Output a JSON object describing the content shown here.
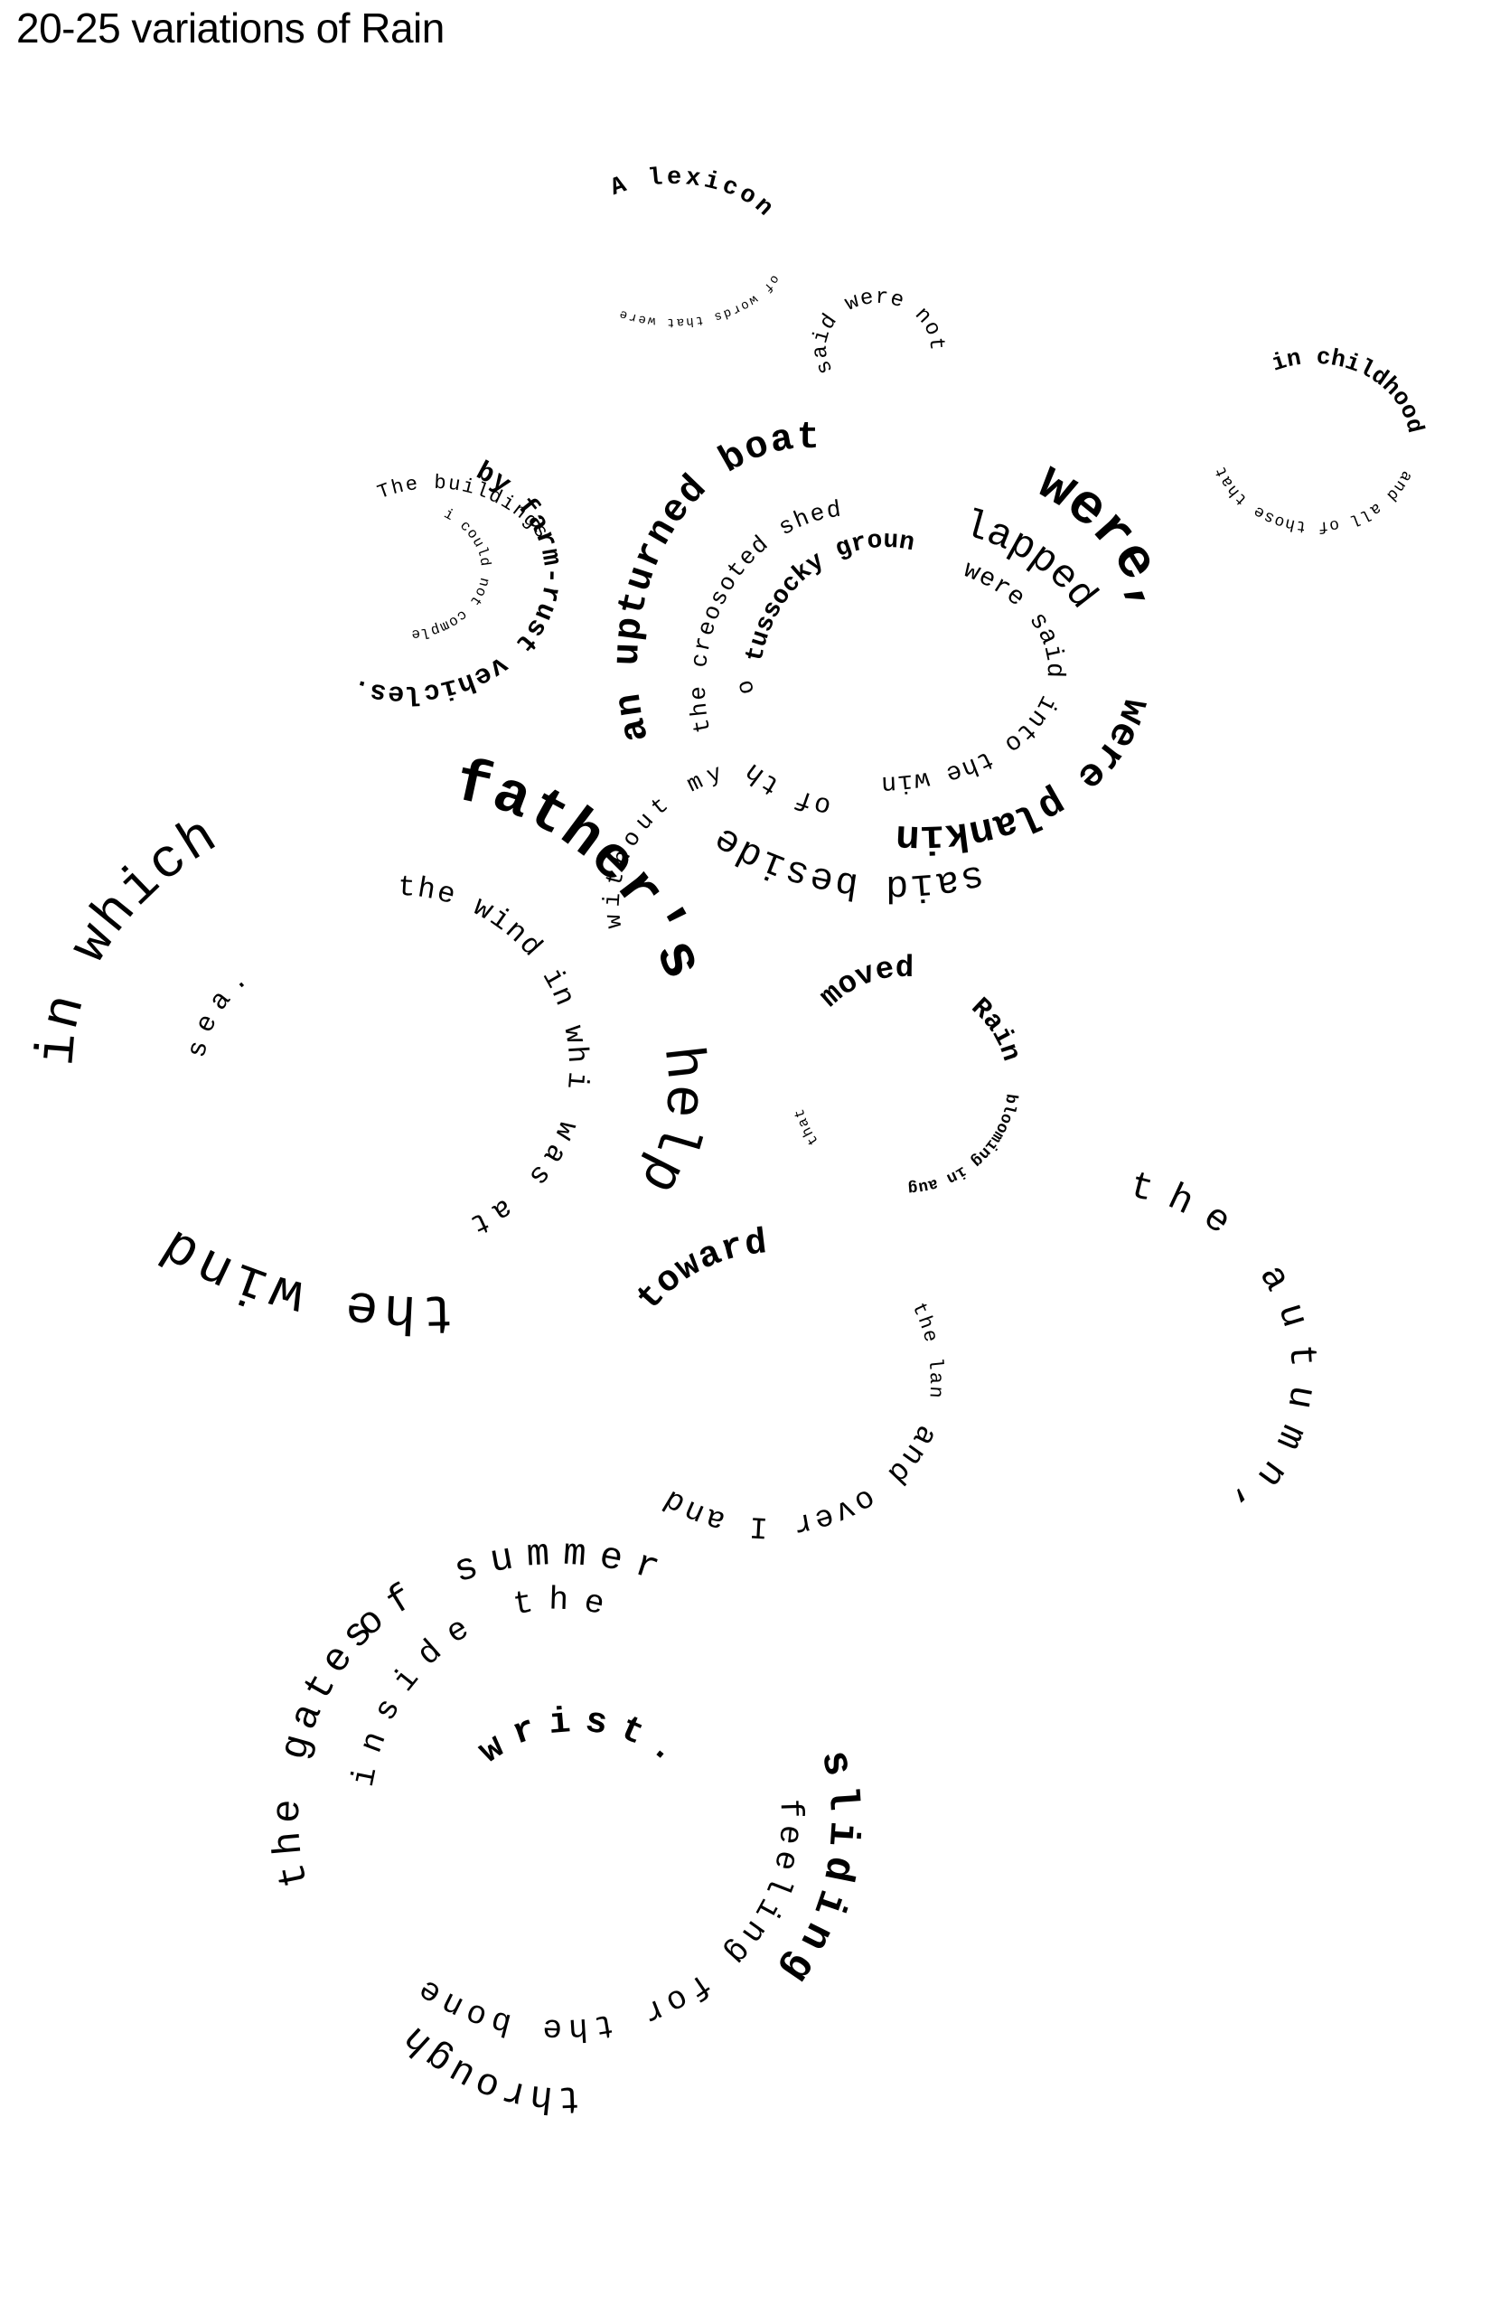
{
  "title": "20-25 variations of Rain",
  "colors": {
    "ink": "#000000",
    "background": "#ffffff"
  },
  "phrases": [
    {
      "id": "a-lexicon",
      "text": "A lexicon"
    },
    {
      "id": "of-words-that-were",
      "text": "of words that were"
    },
    {
      "id": "said-were-not",
      "text": "said were not"
    },
    {
      "id": "in-childhood",
      "text": "in childhood,"
    },
    {
      "id": "and-all-of-those-that",
      "text": "and all of those that"
    },
    {
      "id": "the-buildings",
      "text": "The buildings"
    },
    {
      "id": "by-farm-rust-vehicles",
      "text": "by farm-rust vehicles."
    },
    {
      "id": "i-could-not-complete",
      "text": "i could not complete"
    },
    {
      "id": "an-upturned-boat",
      "text": "an upturned boat,"
    },
    {
      "id": "were",
      "text": "were,"
    },
    {
      "id": "lapped",
      "text": "lapped"
    },
    {
      "id": "were-planking",
      "text": "were planking"
    },
    {
      "id": "said-beside",
      "text": "said beside"
    },
    {
      "id": "the-creosoted-shed",
      "text": "the creosoted shed"
    },
    {
      "id": "tussocky-ground",
      "text": "tussocky ground,"
    },
    {
      "id": "were-said-into-the-wind",
      "text": "were said into the wind"
    },
    {
      "id": "of-the",
      "text": "of the"
    },
    {
      "id": "on",
      "text": "on"
    },
    {
      "id": "without-my",
      "text": "without my"
    },
    {
      "id": "in-which",
      "text": "in which"
    },
    {
      "id": "fathers",
      "text": "father's"
    },
    {
      "id": "help",
      "text": "help,"
    },
    {
      "id": "the-wind",
      "text": "the wind"
    },
    {
      "id": "the-wind-in-which",
      "text": "the wind in which"
    },
    {
      "id": "i-was-at",
      "text": "i was at"
    },
    {
      "id": "sea",
      "text": "sea."
    },
    {
      "id": "moved",
      "text": "moved"
    },
    {
      "id": "rain",
      "text": "Rain"
    },
    {
      "id": "blooming-in-august",
      "text": "blooming in august"
    },
    {
      "id": "that",
      "text": "that"
    },
    {
      "id": "toward",
      "text": "toward"
    },
    {
      "id": "the-land",
      "text": "the land"
    },
    {
      "id": "and-over-i-and",
      "text": "and over I and"
    },
    {
      "id": "the-autumn",
      "text": "the autumn,"
    },
    {
      "id": "of-summer",
      "text": "of summer"
    },
    {
      "id": "sliding",
      "text": "sliding"
    },
    {
      "id": "through",
      "text": "through"
    },
    {
      "id": "the-gates",
      "text": "the gates"
    },
    {
      "id": "inside-the",
      "text": "inside the"
    },
    {
      "id": "feeling-for-the-bone",
      "text": "feeling for the bone"
    },
    {
      "id": "wrist",
      "text": "wrist."
    }
  ]
}
